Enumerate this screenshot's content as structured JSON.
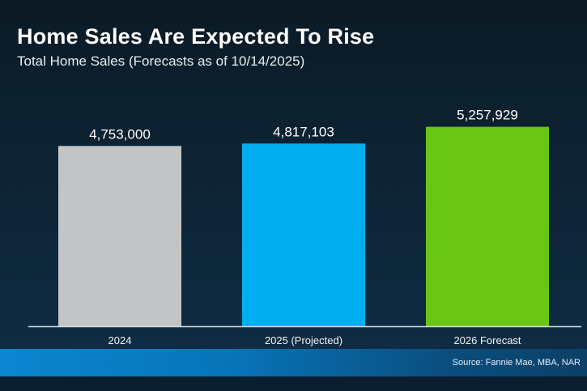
{
  "header": {
    "title": "Home Sales Are Expected To Rise",
    "subtitle": "Total Home Sales (Forecasts as of 10/14/2025)"
  },
  "footer": {
    "source": "Source: Fannie Mae, MBA, NAR"
  },
  "chart_data": {
    "type": "bar",
    "title": "Home Sales Are Expected To Rise",
    "subtitle": "Total Home Sales (Forecasts as of 10/14/2025)",
    "categories": [
      "2024",
      "2025 (Projected)",
      "2026 Forecast"
    ],
    "values": [
      4753000,
      4817103,
      5257929
    ],
    "data_labels": [
      "4,753,000",
      "4,817,103",
      "5,257,929"
    ],
    "colors": [
      "#c2c4c6",
      "#00aeef",
      "#6ac615"
    ],
    "ylim": [
      0,
      7000000
    ],
    "grid": false,
    "legend": "none",
    "xlabel": "",
    "ylabel": ""
  }
}
